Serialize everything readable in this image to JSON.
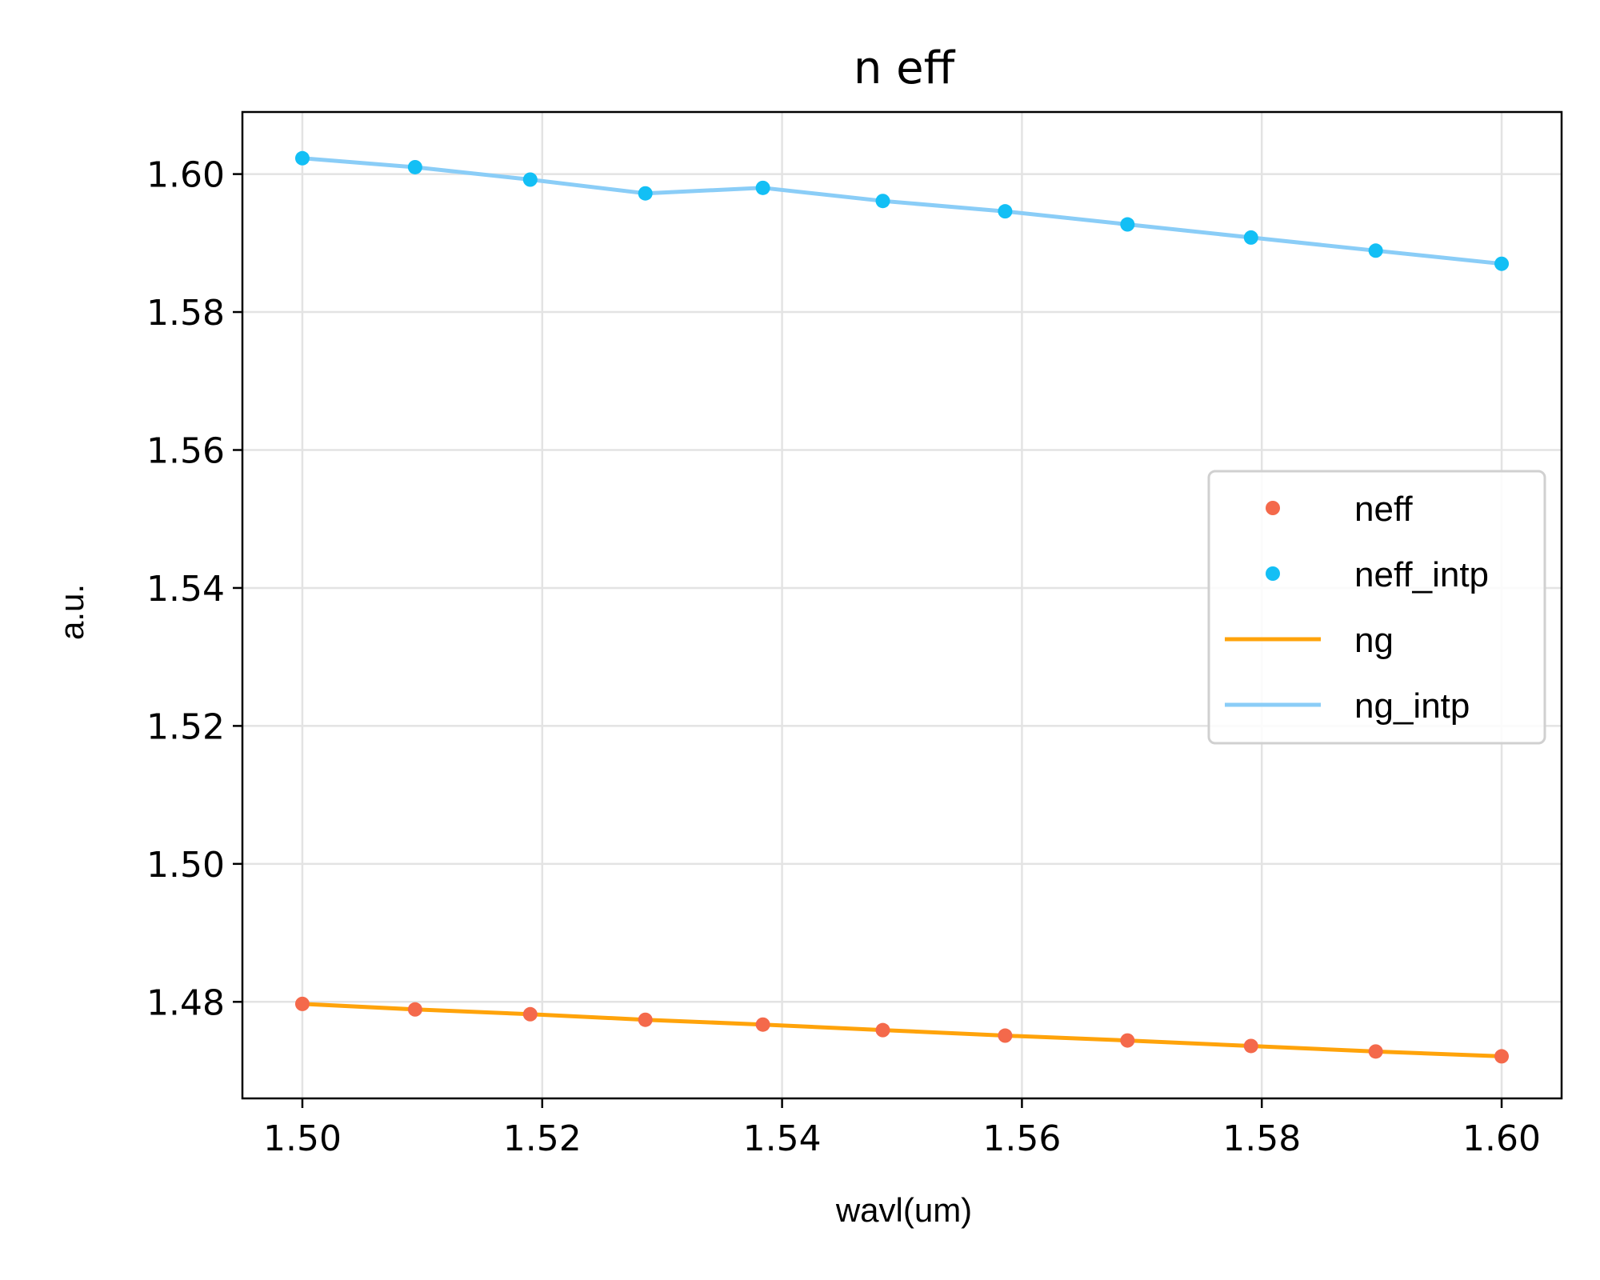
{
  "chart_data": {
    "type": "line",
    "title": "n eff",
    "xlabel": "wavl(um)",
    "ylabel": "a.u.",
    "xlim": [
      1.495,
      1.605
    ],
    "ylim": [
      1.466,
      1.609
    ],
    "xticks": [
      1.5,
      1.52,
      1.54,
      1.56,
      1.58,
      1.6
    ],
    "xtick_labels": [
      "1.50",
      "1.52",
      "1.54",
      "1.56",
      "1.58",
      "1.60"
    ],
    "yticks": [
      1.48,
      1.5,
      1.52,
      1.54,
      1.56,
      1.58,
      1.6
    ],
    "ytick_labels": [
      "1.48",
      "1.50",
      "1.52",
      "1.54",
      "1.56",
      "1.58",
      "1.60"
    ],
    "grid": true,
    "legend_position": "center-right",
    "x": [
      1.5,
      1.5094,
      1.519,
      1.5286,
      1.5384,
      1.5484,
      1.5586,
      1.5688,
      1.5791,
      1.5895,
      1.6
    ],
    "series": [
      {
        "name": "neff",
        "style": "markers",
        "color": "#f4694b",
        "values": [
          1.4797,
          1.4789,
          1.4782,
          1.4774,
          1.4767,
          1.4759,
          1.4751,
          1.4744,
          1.4736,
          1.4728,
          1.4721
        ]
      },
      {
        "name": "neff_intp",
        "style": "markers",
        "color": "#13bff5",
        "values": [
          1.6023,
          1.601,
          1.5992,
          1.5972,
          1.598,
          1.5961,
          1.5946,
          1.5927,
          1.5908,
          1.5889,
          1.587
        ]
      },
      {
        "name": "ng",
        "style": "line",
        "color": "#ffa30a",
        "values": [
          1.4797,
          1.4789,
          1.4782,
          1.4774,
          1.4767,
          1.4759,
          1.4751,
          1.4744,
          1.4736,
          1.4728,
          1.4721
        ]
      },
      {
        "name": "ng_intp",
        "style": "line",
        "color": "#8acdf7",
        "values": [
          1.6023,
          1.601,
          1.5992,
          1.5972,
          1.598,
          1.5961,
          1.5946,
          1.5927,
          1.5908,
          1.5889,
          1.587
        ]
      }
    ]
  }
}
